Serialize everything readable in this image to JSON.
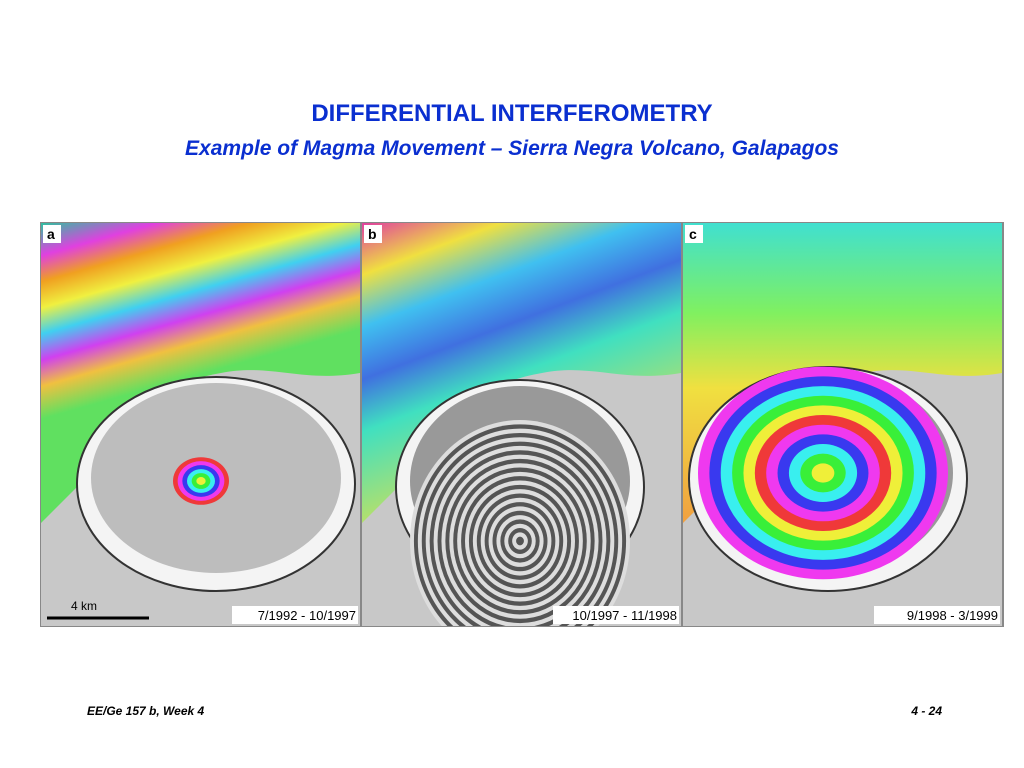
{
  "header": {
    "title": "DIFFERENTIAL INTERFEROMETRY",
    "subtitle": "Example of Magma Movement – Sierra Negra Volcano, Galapagos"
  },
  "figure": {
    "panels": [
      {
        "label": "a",
        "dates": "7/1992 - 10/1997"
      },
      {
        "label": "b",
        "dates": "10/1997 - 11/1998"
      },
      {
        "label": "c",
        "dates": "9/1998 - 3/1999"
      }
    ],
    "scale_bar": "4 km"
  },
  "footer": {
    "left": "EE/Ge 157 b, Week 4",
    "right": "4 - 24"
  }
}
